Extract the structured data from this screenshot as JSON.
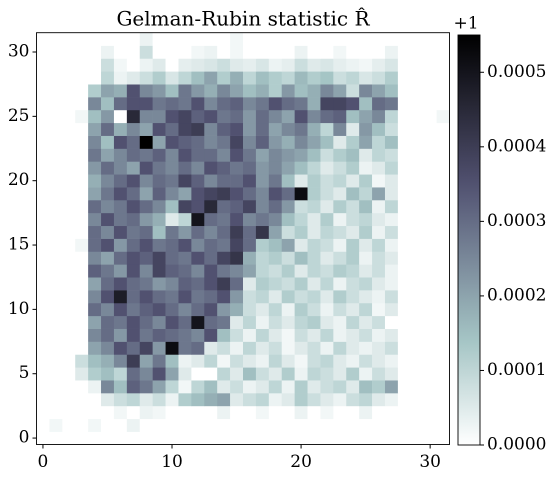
{
  "chart_data": {
    "type": "heatmap",
    "title": "Gelman-Rubin statistic R̂",
    "colorbar_offset": "+1",
    "colormap": "bone_r",
    "xlim": [
      -0.5,
      31.5
    ],
    "ylim": [
      -0.5,
      31.5
    ],
    "xticks": [
      0,
      10,
      20,
      30
    ],
    "yticks": [
      0,
      5,
      10,
      15,
      20,
      25,
      30
    ],
    "clim": [
      0,
      0.00055
    ],
    "cticks": [
      {
        "value": 0,
        "label": "0.0000"
      },
      0.0001,
      0.0002,
      0.0003,
      0.0004,
      0.0005
    ],
    "z": [
      [
        0,
        0,
        0,
        0,
        0,
        0,
        0,
        0,
        0,
        0,
        0,
        0,
        0,
        0,
        0,
        0,
        0,
        0,
        0,
        0,
        0,
        0,
        0,
        0,
        0,
        0,
        0,
        0,
        0,
        0,
        0,
        0
      ],
      [
        0,
        2e-05,
        0,
        0,
        2e-05,
        0,
        0,
        3e-05,
        0,
        0,
        0,
        0,
        0,
        0,
        0,
        0,
        0,
        0,
        0,
        0,
        0,
        0,
        0,
        0,
        0,
        0,
        0,
        0,
        0,
        0,
        0,
        0
      ],
      [
        0,
        0,
        0,
        0,
        0,
        0,
        2e-05,
        0,
        3e-05,
        2e-05,
        0,
        0,
        0,
        0,
        3e-05,
        0,
        0,
        2e-05,
        0,
        0,
        3e-05,
        0,
        2e-05,
        0,
        0,
        3e-05,
        0,
        0,
        0,
        0,
        0,
        0
      ],
      [
        0,
        0,
        0,
        0,
        0,
        5e-05,
        8e-05,
        0.0001,
        5e-05,
        8e-05,
        3e-05,
        0.00012,
        0.00015,
        0.00018,
        0.0002,
        5e-05,
        8e-05,
        0.0001,
        3e-05,
        5e-05,
        0.00012,
        8e-05,
        5e-05,
        3e-05,
        8e-05,
        0.0001,
        5e-05,
        3e-05,
        0,
        0,
        0,
        0
      ],
      [
        0,
        0,
        0,
        0,
        3e-05,
        0.00025,
        0.00015,
        0.00032,
        0.00028,
        0.0002,
        0.0001,
        2e-05,
        0.0001,
        0.00015,
        5e-05,
        8e-05,
        3e-05,
        5e-05,
        0.0001,
        3e-05,
        0.00012,
        5e-05,
        8e-05,
        0.0001,
        5e-05,
        0.00015,
        0.00012,
        0.0002,
        0,
        0,
        0,
        0
      ],
      [
        0,
        0,
        0,
        5e-05,
        0.00012,
        0.00015,
        0.0001,
        0.0003,
        0.00025,
        0.00035,
        0.0002,
        5e-05,
        0,
        0,
        0.0001,
        5e-05,
        0.00015,
        8e-05,
        5e-05,
        0.00012,
        3e-05,
        0.0001,
        8e-05,
        5e-05,
        0.00012,
        3e-05,
        8e-05,
        5e-05,
        0,
        0,
        0,
        0
      ],
      [
        0,
        0,
        0,
        8e-05,
        0.00015,
        0.00018,
        0.00025,
        0.0004,
        0.0002,
        0.00028,
        0.00015,
        3e-05,
        5e-05,
        0.0001,
        2e-05,
        8e-05,
        5e-05,
        3e-05,
        0.0001,
        5e-05,
        2e-05,
        8e-05,
        0.0001,
        5e-05,
        3e-05,
        8e-05,
        5e-05,
        3e-05,
        0,
        0,
        0,
        0
      ],
      [
        0,
        0,
        0,
        0,
        0.0002,
        0.00025,
        0.00035,
        0.0003,
        0.00038,
        0.00022,
        0.00052,
        0.00028,
        0.0003,
        5e-05,
        8e-05,
        3e-05,
        0.0001,
        5e-05,
        8e-05,
        2e-05,
        5e-05,
        8e-05,
        3e-05,
        0.0001,
        5e-05,
        3e-05,
        5e-05,
        8e-05,
        0,
        0,
        0,
        0
      ],
      [
        0,
        0,
        0,
        0,
        0.00025,
        0.0003,
        0.00022,
        0.00035,
        0.00028,
        0.00032,
        0.0003,
        0.00028,
        0.00025,
        0.00035,
        0.00015,
        8e-05,
        3e-05,
        0.0001,
        5e-05,
        2e-05,
        8e-05,
        5e-05,
        0.0001,
        3e-05,
        5e-05,
        8e-05,
        3e-05,
        5e-05,
        0,
        0,
        0,
        0
      ],
      [
        0,
        0,
        0,
        0,
        0.0002,
        0.0003,
        0.00028,
        0.00035,
        0.0003,
        0.00025,
        0.00035,
        0.0003,
        0.0005,
        0.0003,
        0.00028,
        5e-05,
        0.0001,
        3e-05,
        8e-05,
        5e-05,
        0.0001,
        0.00012,
        5e-05,
        3e-05,
        0.0001,
        5e-05,
        8e-05,
        0,
        0,
        0,
        0,
        0
      ],
      [
        0,
        0,
        0,
        0,
        0.0003,
        0.00025,
        0.00035,
        0.00028,
        0.00032,
        0.00035,
        0.0003,
        0.00025,
        0.0003,
        0.00035,
        0.00022,
        0.00018,
        8e-05,
        5e-05,
        0.0001,
        3e-05,
        0.00012,
        8e-05,
        3e-05,
        8e-05,
        5e-05,
        0.0001,
        2e-05,
        5e-05,
        0,
        0,
        0,
        0
      ],
      [
        0,
        0,
        0,
        0,
        0.00025,
        0.00035,
        0.00048,
        0.0003,
        0.00035,
        0.0003,
        0.00028,
        0.00035,
        0.00028,
        0.0003,
        0.00035,
        0.00022,
        8e-05,
        0.0001,
        5e-05,
        0.00012,
        8e-05,
        0.0001,
        5e-05,
        0.00012,
        8e-05,
        5e-05,
        3e-05,
        8e-05,
        0,
        0,
        0,
        0
      ],
      [
        0,
        0,
        0,
        0,
        0.0002,
        0.0003,
        0.00035,
        0.0003,
        0.00028,
        0.00022,
        0.00025,
        0.00032,
        0.0003,
        0.00035,
        0.0004,
        0.0003,
        5e-05,
        0.00012,
        0.0001,
        8e-05,
        0.00012,
        5e-05,
        0.0001,
        3e-05,
        8e-05,
        0.0001,
        5e-05,
        3e-05,
        0,
        0,
        0,
        0
      ],
      [
        0,
        0,
        0,
        0,
        0.00032,
        0.00028,
        0.00022,
        0.00035,
        0.00025,
        0.00038,
        0.00032,
        0.0003,
        0.00025,
        0.00035,
        0.00028,
        0.00025,
        0.0002,
        0.0001,
        8e-05,
        0.00012,
        5e-05,
        0.0001,
        8e-05,
        0.00012,
        0.0001,
        5e-05,
        8e-05,
        3e-05,
        0,
        0,
        0,
        0
      ],
      [
        0,
        0,
        0,
        0,
        0.00025,
        0.0002,
        0.0003,
        0.00035,
        0.00032,
        0.00038,
        0.0003,
        0.00028,
        0.00035,
        0.0003,
        0.00038,
        0.00042,
        0.00018,
        0.0001,
        0.00012,
        8e-05,
        0.00015,
        0.0001,
        5e-05,
        8e-05,
        0.00012,
        3e-05,
        8e-05,
        5e-05,
        0,
        0,
        0,
        0
      ],
      [
        0,
        0,
        0,
        2e-05,
        0.0003,
        0.00035,
        0.00022,
        0.0003,
        0.00035,
        0.00028,
        0.0003,
        0.00035,
        0.00025,
        0.0003,
        0.00028,
        0.00038,
        0.0003,
        0.00012,
        0.00015,
        0.0002,
        5e-05,
        0.0001,
        8e-05,
        3e-05,
        0.00012,
        5e-05,
        0.0001,
        3e-05,
        0,
        0,
        0,
        0
      ],
      [
        0,
        0,
        0,
        0,
        0.0003,
        0.00025,
        0.00035,
        0.00028,
        0.0003,
        0.00015,
        0.00028,
        0.00022,
        0.0003,
        0.00025,
        0.0003,
        0.0004,
        0.0003,
        0.00042,
        0.0002,
        8e-05,
        0.00012,
        5e-05,
        0.0001,
        8e-05,
        5e-05,
        0.00012,
        3e-05,
        8e-05,
        0,
        0,
        0,
        0
      ],
      [
        0,
        0,
        0,
        0,
        0.00025,
        0.00035,
        0.00028,
        0.0003,
        0.00022,
        0.00018,
        5e-05,
        0.0001,
        0.0005,
        0.0003,
        0.00028,
        0.00035,
        0.00025,
        0.00028,
        0.00025,
        0.00015,
        0.0001,
        5e-05,
        0.00012,
        3e-05,
        8e-05,
        0.0001,
        5e-05,
        3e-05,
        0,
        0,
        0,
        0
      ],
      [
        0,
        0,
        0,
        0,
        0.0003,
        0.00025,
        0.00028,
        0.00035,
        0.0003,
        0.00025,
        0.00015,
        0.00038,
        0.00035,
        0.00045,
        0.0003,
        0.00032,
        0.00038,
        0.00025,
        0.0003,
        0.00022,
        8e-05,
        0.0001,
        5e-05,
        0.00012,
        8e-05,
        0.00015,
        3e-05,
        0.0001,
        0,
        0,
        0,
        0
      ],
      [
        0,
        0,
        0,
        0,
        0.0002,
        0.00028,
        0.00035,
        0.0003,
        0.0002,
        0.00032,
        0.00025,
        0.0002,
        0.00035,
        0.00038,
        0.0004,
        0.00035,
        0.0003,
        0.00025,
        0.00035,
        0.0003,
        0.00052,
        0.00012,
        8e-05,
        5e-05,
        0.00015,
        0.0001,
        0.0002,
        5e-05,
        0,
        0,
        0,
        0
      ],
      [
        0,
        0,
        0,
        0,
        0.00018,
        0.00025,
        0.0003,
        0.00035,
        0.00025,
        0.0003,
        0.00028,
        0.00038,
        0.00032,
        0.00025,
        0.0003,
        0.0003,
        0.00035,
        0.00022,
        0.00028,
        0.00015,
        5e-05,
        0.00012,
        8e-05,
        0.0001,
        5e-05,
        0.00012,
        2e-05,
        5e-05,
        0,
        0,
        0,
        0
      ],
      [
        0,
        0,
        0,
        0,
        0.00022,
        0.0003,
        0.00025,
        0.0002,
        0.00035,
        0.00028,
        0.00025,
        0.0003,
        0.00025,
        0.00035,
        0.00032,
        0.00028,
        0.0003,
        0.00022,
        0.00025,
        0.0002,
        0.00015,
        0.0001,
        5e-05,
        8e-05,
        0.00012,
        3e-05,
        5e-05,
        0.0001,
        0,
        0,
        0,
        0
      ],
      [
        0,
        0,
        0,
        0,
        0.00028,
        0.0002,
        0.00025,
        0.0003,
        0.00028,
        0.00032,
        0.00025,
        0.00035,
        0.0003,
        0.0003,
        0.00025,
        0.00035,
        0.00028,
        0.0002,
        0.00025,
        0.00022,
        0.0002,
        0.00015,
        8e-05,
        0.00012,
        0.00015,
        5e-05,
        0.0001,
        8e-05,
        0,
        0,
        0,
        0
      ],
      [
        0,
        0,
        0,
        0,
        0.00025,
        0.00015,
        0.00035,
        0.0003,
        0.00055,
        0.0002,
        0.00035,
        0.00032,
        0.0003,
        0.00025,
        0.00028,
        0.00038,
        0.00025,
        0.00032,
        0.00022,
        0.00018,
        0.00025,
        0.0002,
        0.00015,
        5e-05,
        0.00012,
        0.0002,
        0.0001,
        0.00015,
        0,
        0,
        0,
        0
      ],
      [
        0,
        0,
        0,
        0,
        0.0002,
        0.0003,
        0.00018,
        0.00025,
        0.0002,
        0.00035,
        0.0003,
        0.00038,
        0.0004,
        0.00025,
        0.00032,
        0.00035,
        0.00022,
        0.0003,
        0.0002,
        0.00025,
        0.00028,
        0.00018,
        0.0001,
        0.00025,
        5e-05,
        0.00022,
        0.00015,
        8e-05,
        0,
        0,
        0,
        0
      ],
      [
        0,
        0,
        0,
        2e-05,
        0.00015,
        0.00022,
        0,
        0.00045,
        0.00025,
        0.00025,
        0.00035,
        0.00038,
        0.00032,
        0.00035,
        0.00028,
        0.0003,
        0.00022,
        0.0003,
        0.00025,
        0.0002,
        0.00035,
        0.00025,
        0.0003,
        0.00032,
        0.00015,
        0.0002,
        0.00025,
        0.0001,
        0,
        0,
        0,
        2e-05
      ],
      [
        0,
        0,
        0,
        0,
        0.00025,
        0.00015,
        0.0003,
        0.00035,
        0.00035,
        0.00028,
        0.0003,
        0.00028,
        0.00035,
        0.00025,
        0.0003,
        0.00032,
        0.00025,
        0.00028,
        0.00035,
        0.0003,
        0.00028,
        0.00018,
        0.00038,
        0.00038,
        0.00035,
        0.00015,
        0.0003,
        0.00028,
        0,
        0,
        0,
        0
      ],
      [
        0,
        0,
        0,
        0,
        0.00012,
        0.0002,
        0.00018,
        0.00035,
        0.00025,
        0.00022,
        0.00015,
        0.00028,
        0.00022,
        0.00018,
        0.00025,
        0.0002,
        0.00015,
        0.00018,
        0.00012,
        0.00022,
        0.00015,
        0.00018,
        0.00025,
        0.0002,
        8e-05,
        0.00025,
        0.0002,
        0.00015,
        0,
        0,
        0,
        0
      ],
      [
        0,
        0,
        0,
        0,
        0,
        0.0001,
        3e-05,
        5e-05,
        8e-05,
        0.00012,
        6e-05,
        0.0001,
        0.00015,
        0.0002,
        0.00012,
        0.00018,
        0.0001,
        0.00015,
        0.00012,
        0.0001,
        0.00016,
        0.00012,
        0.00014,
        8e-05,
        0.0001,
        6e-05,
        8e-05,
        0.00012,
        0,
        0,
        0,
        0
      ],
      [
        0,
        0,
        0,
        0,
        0,
        8e-05,
        2e-05,
        0,
        3e-05,
        5e-05,
        0,
        4e-05,
        5e-05,
        6e-05,
        8e-05,
        5e-05,
        4e-05,
        6e-05,
        3e-05,
        4e-05,
        8e-05,
        5e-05,
        6e-05,
        4e-05,
        3e-05,
        2e-05,
        4e-05,
        6e-05,
        0,
        0,
        0,
        0
      ],
      [
        0,
        0,
        0,
        0,
        0,
        3e-05,
        0,
        0,
        8e-05,
        0,
        0,
        0,
        2e-05,
        3e-05,
        0,
        2e-05,
        0,
        0,
        0,
        0,
        3e-05,
        0,
        0,
        2e-05,
        0,
        0,
        0,
        3e-05,
        0,
        0,
        0,
        0
      ],
      [
        0,
        0,
        0,
        0,
        0,
        0,
        0,
        0,
        3e-05,
        0,
        0,
        0,
        0,
        0,
        0,
        2e-05,
        0,
        0,
        0,
        0,
        0,
        0,
        0,
        0,
        0,
        0,
        0,
        0,
        0,
        0,
        0,
        0
      ]
    ]
  }
}
